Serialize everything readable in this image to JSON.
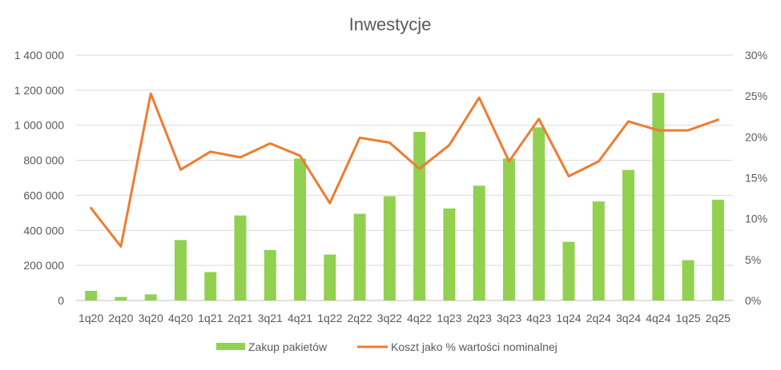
{
  "chart_data": {
    "type": "bar",
    "title": "Inwestycje",
    "categories": [
      "1q20",
      "2q20",
      "3q20",
      "4q20",
      "1q21",
      "2q21",
      "3q21",
      "4q21",
      "1q22",
      "2q22",
      "3q22",
      "4q22",
      "1q23",
      "2q23",
      "3q23",
      "4q23",
      "1q24",
      "2q24",
      "3q24",
      "4q24",
      "1q25",
      "2q25"
    ],
    "series": [
      {
        "name": "Zakup pakietów",
        "type": "bar",
        "axis": "left",
        "color": "#92D050",
        "values": [
          55000,
          20000,
          35000,
          345000,
          162000,
          485000,
          288000,
          810000,
          262000,
          495000,
          595000,
          962000,
          525000,
          655000,
          810000,
          988000,
          335000,
          565000,
          745000,
          1185000,
          230000,
          575000
        ]
      },
      {
        "name": "Koszt jako % wartości nominalnej",
        "type": "line",
        "axis": "right",
        "color": "#ED7D31",
        "values": [
          11.3,
          6.6,
          25.3,
          16.0,
          18.2,
          17.5,
          19.2,
          17.7,
          11.9,
          19.9,
          19.3,
          16.1,
          19.0,
          24.8,
          17.0,
          22.2,
          15.2,
          17.0,
          21.9,
          20.8,
          20.8,
          22.1
        ]
      }
    ],
    "left_axis": {
      "min": 0,
      "max": 1400000,
      "step": 200000,
      "tick_labels": [
        "0",
        "200 000",
        "400 000",
        "600 000",
        "800 000",
        "1 000 000",
        "1 200 000",
        "1 400 000"
      ]
    },
    "right_axis": {
      "min": 0,
      "max": 30,
      "step": 5,
      "tick_labels": [
        "0%",
        "5%",
        "10%",
        "15%",
        "20%",
        "25%",
        "30%"
      ]
    },
    "grid": true,
    "legend_position": "bottom"
  }
}
